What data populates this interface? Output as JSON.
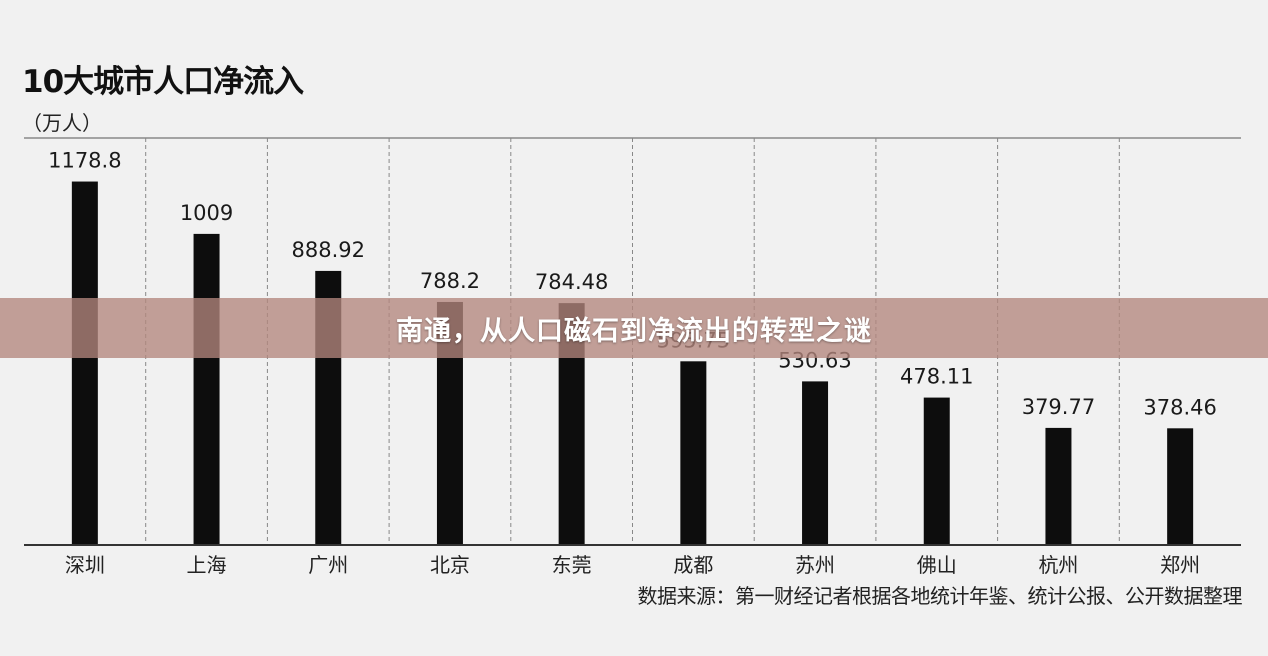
{
  "chart_data": {
    "type": "bar",
    "title": "10大城市人口净流入",
    "unit_label": "（万人）",
    "categories": [
      "深圳",
      "上海",
      "广州",
      "北京",
      "东莞",
      "成都",
      "苏州",
      "佛山",
      "杭州",
      "郑州"
    ],
    "values": [
      1178.8,
      1009,
      888.92,
      788.2,
      784.48,
      595.75,
      530.63,
      478.11,
      379.77,
      378.46
    ],
    "value_labels": [
      "1178.8",
      "1009",
      "888.92",
      "788.2",
      "784.48",
      "595.75",
      "530.63",
      "478.11",
      "379.77",
      "378.46"
    ],
    "ylim": [
      0,
      1320
    ],
    "bar_color": "#0d0d0d",
    "grid": "vertical dashed separators",
    "source": "数据来源：第一财经记者根据各地统计年鉴、统计公报、公开数据整理"
  },
  "overlay": {
    "caption": "南通，从人口磁石到净流出的转型之谜",
    "color": "#b4877d"
  }
}
